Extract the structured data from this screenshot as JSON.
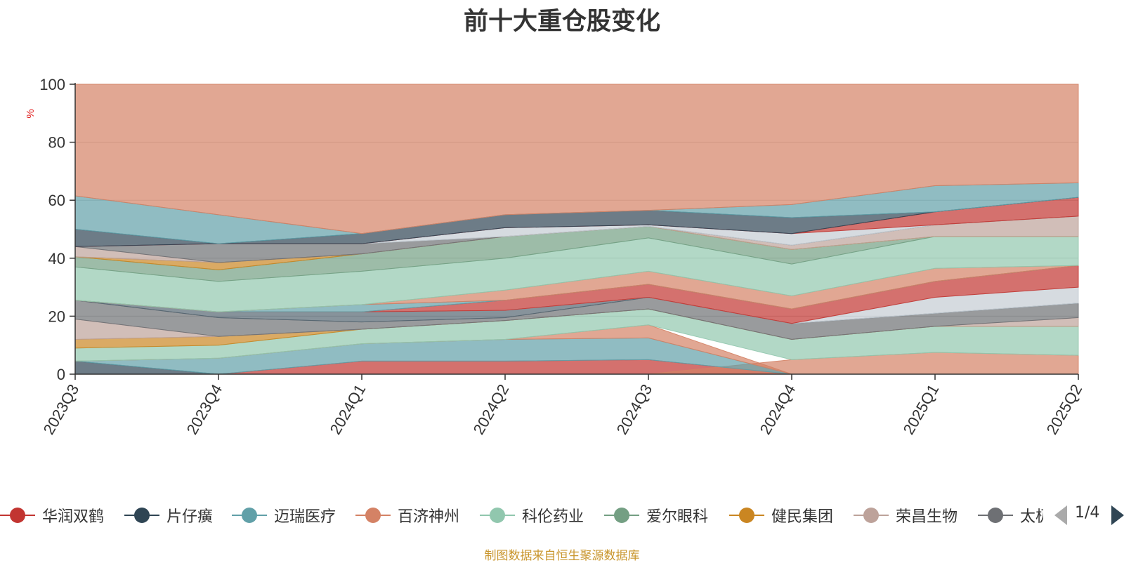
{
  "chart_data": {
    "type": "area",
    "title": "前十大重仓股变化",
    "ylabel": "%",
    "ylim": [
      0,
      100
    ],
    "yticks": [
      0,
      20,
      40,
      60,
      80,
      100
    ],
    "grid": true,
    "legend_position": "bottom",
    "categories": [
      "2023Q3",
      "2023Q4",
      "2024Q1",
      "2024Q2",
      "2024Q3",
      "2024Q4",
      "2025Q1",
      "2025Q2"
    ],
    "bands": [
      {
        "color": "#2f4554",
        "lower": [
          0,
          0,
          0,
          0,
          0,
          0,
          0,
          0
        ],
        "upper": [
          4.5,
          0,
          0,
          0,
          0,
          0,
          0,
          0
        ]
      },
      {
        "color": "#c23531",
        "lower": [
          0,
          0,
          0,
          0,
          0,
          0,
          0,
          0
        ],
        "upper": [
          0,
          0,
          4.5,
          4.5,
          5,
          0,
          0,
          0
        ]
      },
      {
        "color": "#d48265",
        "lower": [
          0,
          0,
          0,
          0,
          0,
          0,
          0,
          0
        ],
        "upper": [
          0,
          0,
          0,
          0,
          0,
          5,
          7.5,
          6.5
        ]
      },
      {
        "color": "#61a0a8",
        "lower": [
          4.5,
          0,
          4.5,
          4.5,
          5,
          0,
          0,
          0
        ],
        "upper": [
          4.5,
          5.5,
          10.5,
          12,
          12.5,
          0,
          0,
          0
        ]
      },
      {
        "color": "#d48265",
        "lower": [
          4.5,
          5.5,
          10.5,
          12,
          12.5,
          0,
          0,
          0
        ],
        "upper": [
          4.5,
          5.5,
          10.5,
          12,
          17,
          0,
          0,
          0
        ]
      },
      {
        "color": "#91c7ae",
        "lower": [
          4.5,
          5.5,
          10.5,
          12,
          17,
          5,
          7.5,
          6.5
        ],
        "upper": [
          9,
          10,
          15.5,
          18.5,
          22.5,
          12,
          16.5,
          16.5
        ]
      },
      {
        "color": "#ca8622",
        "lower": [
          9,
          10,
          15.5,
          18.5,
          22.5,
          12,
          16.5,
          16.5
        ],
        "upper": [
          12,
          13,
          15.5,
          18.5,
          22.5,
          12,
          16.5,
          16.5
        ]
      },
      {
        "color": "#bda29a",
        "lower": [
          12,
          13,
          15.5,
          18.5,
          22.5,
          12,
          16.5,
          16.5
        ],
        "upper": [
          19,
          13,
          15.5,
          18.5,
          22.5,
          12,
          16.5,
          19.5
        ]
      },
      {
        "color": "#6e7074",
        "lower": [
          19,
          13,
          15.5,
          18.5,
          22.5,
          12,
          16.5,
          19.5
        ],
        "upper": [
          25.5,
          19.5,
          18,
          19.5,
          26.5,
          17.5,
          21,
          24.5
        ]
      },
      {
        "color": "#546570",
        "lower": [
          25.5,
          19.5,
          18,
          19.5,
          26.5,
          17.5,
          21,
          24.5
        ],
        "upper": [
          25.5,
          21.5,
          21.5,
          22,
          26.5,
          17.5,
          21,
          24.5
        ]
      },
      {
        "color": "#c4ccd3",
        "lower": [
          25.5,
          21.5,
          21.5,
          22,
          26.5,
          17.5,
          21,
          24.5
        ],
        "upper": [
          25.5,
          21.5,
          21.5,
          22,
          26.5,
          17.5,
          26.5,
          30
        ]
      },
      {
        "color": "#c23531",
        "lower": [
          25.5,
          21.5,
          21.5,
          22,
          26.5,
          17.5,
          26.5,
          30
        ],
        "upper": [
          25.5,
          21.5,
          21.5,
          25.5,
          31,
          22.5,
          32,
          37.5
        ]
      },
      {
        "color": "#61a0a8",
        "lower": [
          25.5,
          21.5,
          21.5,
          25.5,
          31,
          22.5,
          32,
          37.5
        ],
        "upper": [
          25.5,
          21.5,
          24,
          25.5,
          31,
          22.5,
          32,
          37.5
        ]
      },
      {
        "color": "#d48265",
        "lower": [
          25.5,
          21.5,
          24,
          25.5,
          31,
          22.5,
          32,
          37.5
        ],
        "upper": [
          25.5,
          21.5,
          24,
          29,
          35.5,
          27,
          36.5,
          37.5
        ]
      },
      {
        "color": "#91c7ae",
        "lower": [
          25.5,
          21.5,
          24,
          29,
          35.5,
          27,
          36.5,
          37.5
        ],
        "upper": [
          37,
          32,
          35.5,
          40,
          47,
          38,
          47.5,
          47.5
        ]
      },
      {
        "color": "#749f83",
        "lower": [
          37,
          32,
          35.5,
          40,
          47,
          38,
          47.5,
          47.5
        ],
        "upper": [
          40.5,
          36,
          41.5,
          47.5,
          51,
          43,
          47.5,
          47.5
        ]
      },
      {
        "color": "#ca8622",
        "lower": [
          40.5,
          36,
          41.5,
          47.5,
          51,
          43,
          47.5,
          47.5
        ],
        "upper": [
          40.5,
          38.5,
          41.5,
          47.5,
          51,
          43,
          47.5,
          47.5
        ]
      },
      {
        "color": "#bda29a",
        "lower": [
          40.5,
          38.5,
          41.5,
          47.5,
          51,
          43,
          47.5,
          47.5
        ],
        "upper": [
          44,
          38.5,
          41.5,
          47.5,
          51,
          44.5,
          51.5,
          54.5
        ]
      },
      {
        "color": "#6e7074",
        "lower": [
          44,
          38.5,
          41.5,
          47.5,
          51,
          44.5,
          51.5,
          54.5
        ],
        "upper": [
          44,
          45,
          45,
          47.5,
          51,
          44.5,
          51.5,
          54.5
        ]
      },
      {
        "color": "#c4ccd3",
        "lower": [
          44,
          45,
          45,
          47.5,
          51,
          44.5,
          51.5,
          54.5
        ],
        "upper": [
          44,
          45,
          45,
          50.5,
          51.5,
          48.5,
          51.5,
          54.5
        ]
      },
      {
        "color": "#c23531",
        "lower": [
          44,
          45,
          45,
          50.5,
          51.5,
          48.5,
          51.5,
          54.5
        ],
        "upper": [
          44,
          45,
          45,
          50.5,
          51.5,
          48.5,
          56,
          61
        ]
      },
      {
        "color": "#2f4554",
        "lower": [
          44,
          45,
          45,
          50.5,
          51.5,
          48.5,
          56,
          61
        ],
        "upper": [
          50,
          45,
          48.5,
          55,
          56.5,
          54,
          56,
          61
        ]
      },
      {
        "color": "#61a0a8",
        "lower": [
          50,
          45,
          48.5,
          55,
          56.5,
          54,
          56,
          61
        ],
        "upper": [
          61.5,
          55,
          48.5,
          55,
          56.5,
          58.5,
          65,
          66
        ]
      },
      {
        "color": "#d48265",
        "lower": [
          61.5,
          55,
          48.5,
          55,
          56.5,
          58.5,
          65,
          66
        ],
        "upper": [
          100,
          100,
          100,
          100,
          100,
          100,
          100,
          100
        ]
      }
    ]
  },
  "legend": {
    "items": [
      {
        "label": "华润双鹤",
        "color": "#c23531"
      },
      {
        "label": "片仔癀",
        "color": "#2f4554"
      },
      {
        "label": "迈瑞医疗",
        "color": "#61a0a8"
      },
      {
        "label": "百济神州",
        "color": "#d48265"
      },
      {
        "label": "科伦药业",
        "color": "#91c7ae"
      },
      {
        "label": "爱尔眼科",
        "color": "#749f83"
      },
      {
        "label": "健民集团",
        "color": "#ca8622"
      },
      {
        "label": "荣昌生物",
        "color": "#bda29a"
      },
      {
        "label": "太极集团",
        "color": "#6e7074"
      }
    ],
    "page": "1/4"
  },
  "source_note": "制图数据来自恒生聚源数据库"
}
